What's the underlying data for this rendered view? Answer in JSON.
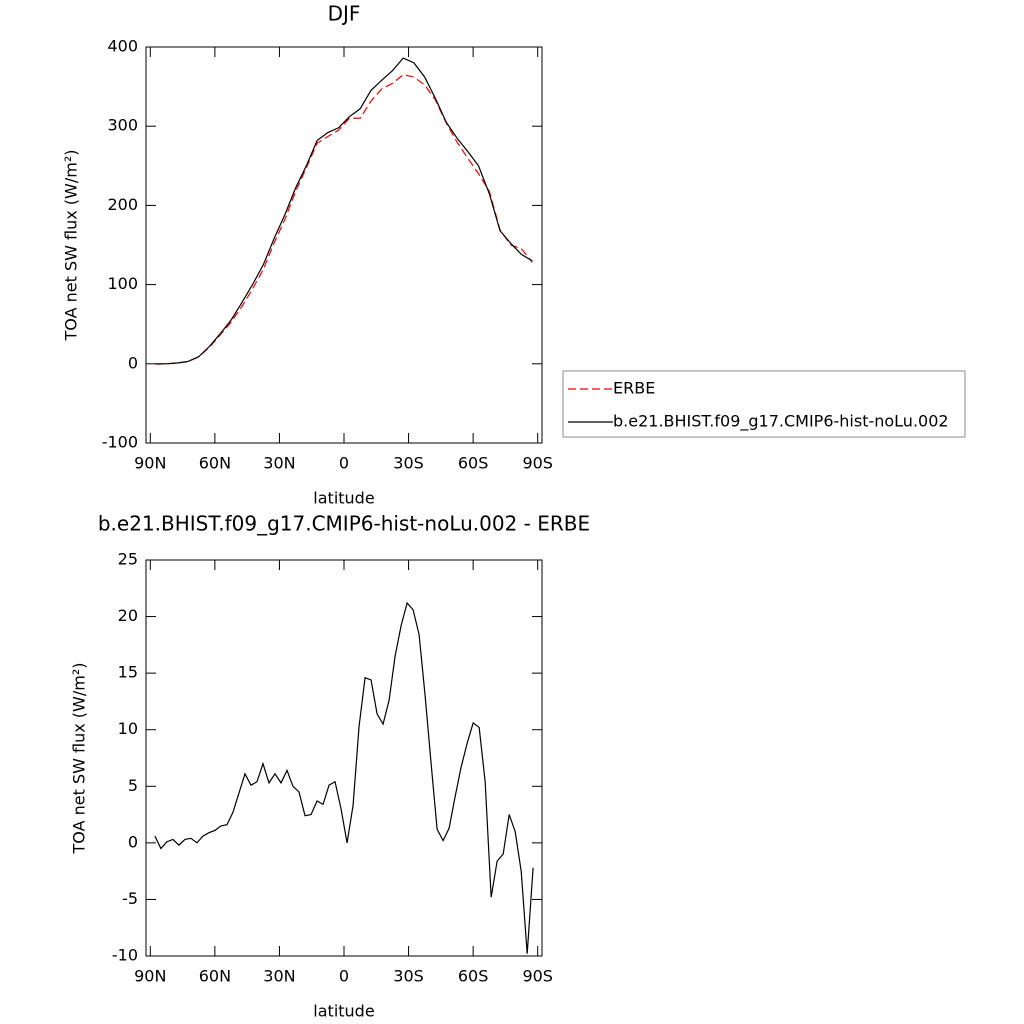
{
  "chart_data": [
    {
      "type": "line",
      "title": "DJF",
      "x_label": "latitude",
      "y_label": "TOA net SW flux (W/m²)",
      "xlim": [
        92,
        -92
      ],
      "ylim": [
        -100,
        400
      ],
      "xticks": [
        {
          "value": 90,
          "label": "90N"
        },
        {
          "value": 60,
          "label": "60N"
        },
        {
          "value": 30,
          "label": "30N"
        },
        0,
        {
          "value": -30,
          "label": "30S"
        },
        {
          "value": -60,
          "label": "60S"
        },
        {
          "value": -90,
          "label": "90S"
        }
      ],
      "yticks": [
        -100,
        0,
        100,
        200,
        300,
        400
      ],
      "legend": "right",
      "x": [
        87.5,
        82.5,
        77.5,
        72.5,
        67.5,
        62.5,
        57.5,
        52.5,
        47.5,
        42.5,
        37.5,
        32.5,
        27.5,
        22.5,
        17.5,
        12.5,
        7.5,
        2.5,
        -2.5,
        -7.5,
        -12.5,
        -17.5,
        -22.5,
        -27.5,
        -32.5,
        -37.5,
        -42.5,
        -47.5,
        -52.5,
        -57.5,
        -62.5,
        -67.5,
        -72.5,
        -77.5,
        -82.5,
        -87.5
      ],
      "series": [
        {
          "name": "ERBE",
          "color": "#ff0000",
          "line_style": "dashed",
          "values": [
            -0.5,
            0,
            1.2,
            2.6,
            8.7,
            21,
            36.5,
            52.5,
            72,
            94.5,
            119,
            152.5,
            182,
            217.5,
            247.5,
            278.5,
            287,
            295,
            310,
            310,
            331.5,
            347,
            354,
            365,
            362,
            352,
            333,
            304,
            280,
            259.5,
            240,
            218,
            169,
            150,
            145,
            128
          ]
        },
        {
          "name": "b.e21.BHIST.f09_g17.CMIP6-hist-noLu.002",
          "color": "#000000",
          "line_style": "solid",
          "values": [
            0,
            0,
            1,
            3,
            9,
            22,
            38,
            55,
            77,
            100,
            125,
            158,
            188,
            222,
            250,
            282,
            292,
            298,
            312,
            322,
            345,
            358,
            370,
            386,
            380,
            362,
            335,
            305,
            285,
            268,
            250,
            215,
            168,
            152,
            138,
            130
          ]
        }
      ]
    },
    {
      "type": "line",
      "title": "b.e21.BHIST.f09_g17.CMIP6-hist-noLu.002 - ERBE",
      "x_label": "latitude",
      "y_label": "TOA net SW flux (W/m²)",
      "xlim": [
        92,
        -92
      ],
      "ylim": [
        -10,
        25
      ],
      "xticks": [
        {
          "value": 90,
          "label": "90N"
        },
        {
          "value": 60,
          "label": "60N"
        },
        {
          "value": 30,
          "label": "30N"
        },
        0,
        {
          "value": -30,
          "label": "30S"
        },
        {
          "value": -60,
          "label": "60S"
        },
        {
          "value": -90,
          "label": "90S"
        }
      ],
      "yticks": [
        -10,
        -5,
        0,
        5,
        10,
        15,
        20,
        25
      ],
      "color": "#000000",
      "x": [
        87.86,
        85.07,
        82.28,
        79.49,
        76.7,
        73.91,
        71.12,
        68.33,
        65.54,
        62.75,
        59.96,
        57.17,
        54.38,
        51.59,
        48.8,
        46.01,
        43.22,
        40.43,
        37.64,
        34.85,
        32.06,
        29.27,
        26.48,
        23.69,
        20.9,
        18.11,
        15.32,
        12.53,
        9.74,
        6.95,
        4.16,
        1.37,
        -1.42,
        -4.21,
        -7.0,
        -9.79,
        -12.58,
        -15.37,
        -18.16,
        -20.95,
        -23.74,
        -26.53,
        -29.32,
        -32.11,
        -34.9,
        -37.69,
        -40.48,
        -43.27,
        -46.06,
        -48.85,
        -51.64,
        -54.43,
        -57.22,
        -60.01,
        -62.8,
        -65.59,
        -68.38,
        -71.17,
        -73.96,
        -76.75,
        -79.54,
        -82.33,
        -85.12,
        -87.86
      ],
      "values": [
        0.6,
        -0.5,
        0.1,
        0.3,
        -0.2,
        0.3,
        0.4,
        0.0,
        0.6,
        0.9,
        1.1,
        1.5,
        1.6,
        2.7,
        4.4,
        6.1,
        5.1,
        5.4,
        7.0,
        5.3,
        6.1,
        5.3,
        6.4,
        5.0,
        4.5,
        2.4,
        2.5,
        3.7,
        3.4,
        5.1,
        5.4,
        3.0,
        0.0,
        3.3,
        10.3,
        14.6,
        14.4,
        11.4,
        10.5,
        12.6,
        16.5,
        19.2,
        21.2,
        20.6,
        18.4,
        13.0,
        7.0,
        1.2,
        0.2,
        1.3,
        4.1,
        6.7,
        8.8,
        10.6,
        10.2,
        5.4,
        -4.8,
        -1.6,
        -1.0,
        2.5,
        1.0,
        -2.5,
        -9.8,
        -2.2
      ]
    }
  ]
}
